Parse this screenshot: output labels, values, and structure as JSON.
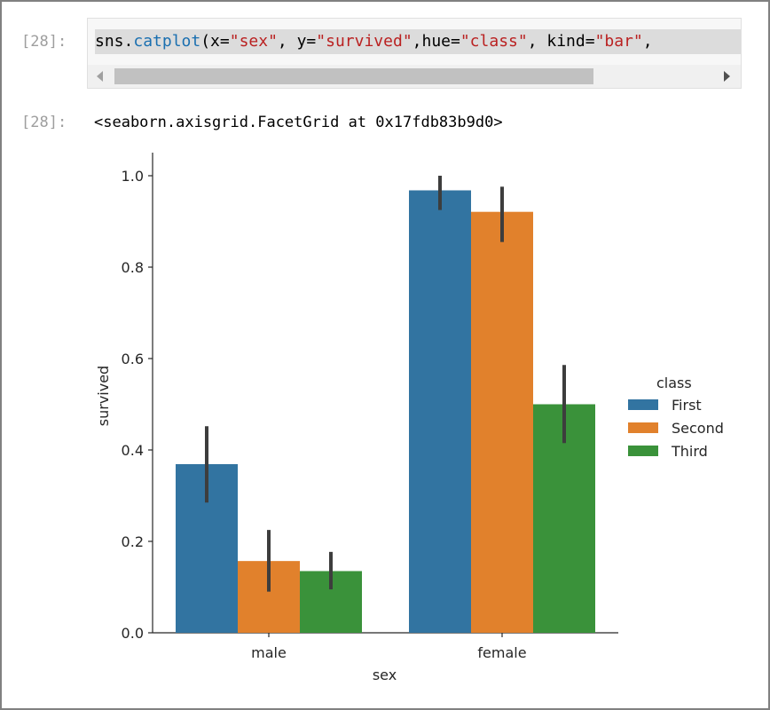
{
  "cell": {
    "input_prompt": "[28]:",
    "code_tokens": [
      {
        "text": "sns",
        "cls": "c-plain"
      },
      {
        "text": ".",
        "cls": "c-plain"
      },
      {
        "text": "catplot",
        "cls": "c-attr"
      },
      {
        "text": "(x=",
        "cls": "c-plain"
      },
      {
        "text": "\"sex\"",
        "cls": "c-str"
      },
      {
        "text": ", y=",
        "cls": "c-plain"
      },
      {
        "text": "\"survived\"",
        "cls": "c-str"
      },
      {
        "text": ",hue=",
        "cls": "c-plain"
      },
      {
        "text": "\"class\"",
        "cls": "c-str"
      },
      {
        "text": ", kind=",
        "cls": "c-plain"
      },
      {
        "text": "\"bar\"",
        "cls": "c-str"
      },
      {
        "text": ",",
        "cls": "c-plain"
      }
    ],
    "output_prompt": "[28]:",
    "output_text": "<seaborn.axisgrid.FacetGrid at 0x17fdb83b9d0>"
  },
  "chart_data": {
    "type": "bar",
    "categories": [
      "male",
      "female"
    ],
    "xlabel": "sex",
    "ylabel": "survived",
    "ylim": [
      0,
      1.05
    ],
    "yticks": [
      "0.0",
      "0.2",
      "0.4",
      "0.6",
      "0.8",
      "1.0"
    ],
    "legend_title": "class",
    "legend_position": "right",
    "series": [
      {
        "name": "First",
        "color": "#3274a1",
        "values": [
          0.369,
          0.968
        ],
        "ci": [
          [
            0.285,
            0.452
          ],
          [
            0.925,
            1.0
          ]
        ]
      },
      {
        "name": "Second",
        "color": "#e1812c",
        "values": [
          0.157,
          0.921
        ],
        "ci": [
          [
            0.09,
            0.225
          ],
          [
            0.855,
            0.976
          ]
        ]
      },
      {
        "name": "Third",
        "color": "#3a923a",
        "values": [
          0.135,
          0.5
        ],
        "ci": [
          [
            0.095,
            0.177
          ],
          [
            0.415,
            0.586
          ]
        ]
      }
    ]
  }
}
